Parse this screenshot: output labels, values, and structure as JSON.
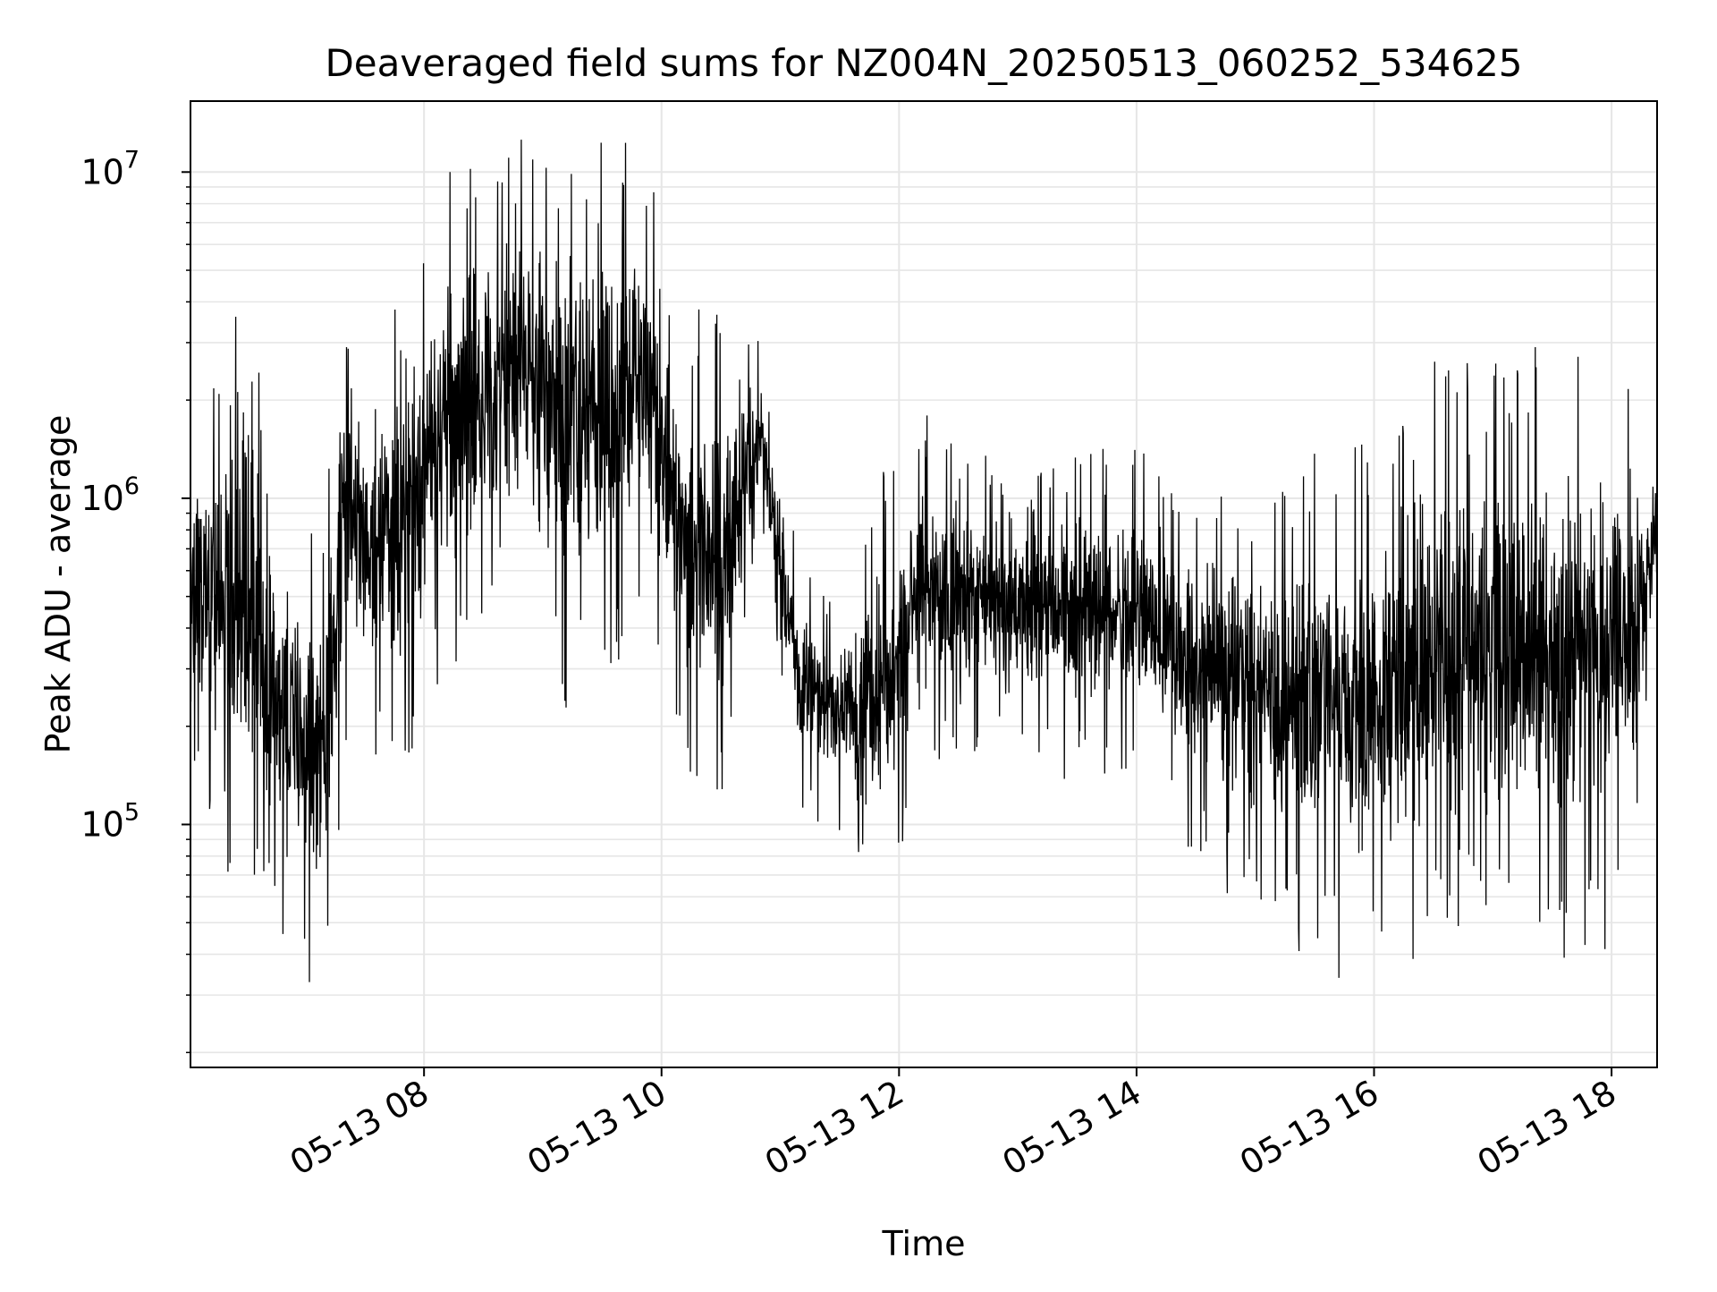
{
  "chart_data": {
    "type": "line",
    "title": "Deaveraged field sums for NZ004N_20250513_060252_534625",
    "xlabel": "Time",
    "ylabel": "Peak ADU - average",
    "yscale": "log",
    "grid": true,
    "series_color": "#000000",
    "grid_color": "#e6e6e6",
    "xlim": [
      "2025-05-13 06:02",
      "2025-05-13 18:23"
    ],
    "ylim": [
      18000,
      16500000
    ],
    "x_ticks": [
      {
        "t": "2025-05-13 08:00",
        "label": "05-13 08"
      },
      {
        "t": "2025-05-13 10:00",
        "label": "05-13 10"
      },
      {
        "t": "2025-05-13 12:00",
        "label": "05-13 12"
      },
      {
        "t": "2025-05-13 14:00",
        "label": "05-13 14"
      },
      {
        "t": "2025-05-13 16:00",
        "label": "05-13 16"
      },
      {
        "t": "2025-05-13 18:00",
        "label": "05-13 18"
      }
    ],
    "y_ticks": [
      {
        "value": 100000,
        "label": "10",
        "exp": "5"
      },
      {
        "value": 1000000,
        "label": "10",
        "exp": "6"
      },
      {
        "value": 10000000,
        "label": "10",
        "exp": "7"
      }
    ],
    "series": [
      {
        "x": [
          "2025-05-13 06:02",
          "2025-05-13 06:15",
          "2025-05-13 06:30",
          "2025-05-13 06:45",
          "2025-05-13 07:00",
          "2025-05-13 07:10",
          "2025-05-13 07:20",
          "2025-05-13 07:35",
          "2025-05-13 07:50",
          "2025-05-13 08:10",
          "2025-05-13 08:30",
          "2025-05-13 08:50",
          "2025-05-13 09:10",
          "2025-05-13 09:30",
          "2025-05-13 09:50",
          "2025-05-13 10:10",
          "2025-05-13 10:30",
          "2025-05-13 10:50",
          "2025-05-13 11:10",
          "2025-05-13 11:30",
          "2025-05-13 11:50",
          "2025-05-13 12:10",
          "2025-05-13 12:30",
          "2025-05-13 12:50",
          "2025-05-13 13:10",
          "2025-05-13 13:30",
          "2025-05-13 13:50",
          "2025-05-13 14:10",
          "2025-05-13 14:30",
          "2025-05-13 14:50",
          "2025-05-13 15:10",
          "2025-05-13 15:30",
          "2025-05-13 15:50",
          "2025-05-13 16:10",
          "2025-05-13 16:30",
          "2025-05-13 16:50",
          "2025-05-13 17:10",
          "2025-05-13 17:30",
          "2025-05-13 17:50",
          "2025-05-13 18:10",
          "2025-05-13 18:23"
        ],
        "low": [
          200000,
          150000,
          120000,
          70000,
          60000,
          45000,
          300000,
          250000,
          220000,
          500000,
          700000,
          800000,
          450000,
          400000,
          900000,
          250000,
          200000,
          1000000,
          150000,
          120000,
          80000,
          200000,
          250000,
          220000,
          220000,
          200000,
          220000,
          180000,
          120000,
          100000,
          80000,
          70000,
          55000,
          60000,
          80000,
          90000,
          80000,
          75000,
          80000,
          90000,
          650000
        ],
        "high": [
          1500000,
          1700000,
          2500000,
          800000,
          500000,
          600000,
          4500000,
          2000000,
          3000000,
          6000000,
          7000000,
          8000000,
          7500000,
          8500000,
          8000000,
          2500000,
          2500000,
          2500000,
          500000,
          400000,
          800000,
          1300000,
          1300000,
          1000000,
          1100000,
          1000000,
          1100000,
          1000000,
          800000,
          900000,
          700000,
          900000,
          900000,
          1100000,
          1500000,
          1600000,
          1600000,
          1700000,
          1600000,
          1500000,
          1000000
        ]
      }
    ]
  }
}
